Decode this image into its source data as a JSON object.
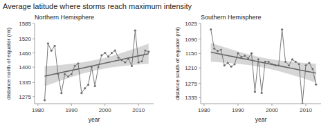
{
  "chart_data": [
    {
      "type": "line",
      "title": "Average latitude where storms reach maximum intensity",
      "subtitle": "Northern Hemisphere",
      "x_label": "year",
      "y_label": "distance north of equator (mi)",
      "x": [
        1982,
        1983,
        1984,
        1985,
        1986,
        1987,
        1988,
        1989,
        1990,
        1991,
        1992,
        1993,
        1994,
        1995,
        1996,
        1997,
        1998,
        1999,
        2000,
        2001,
        2002,
        2003,
        2004,
        2005,
        2006,
        2007,
        2008,
        2009,
        2010,
        2011,
        2012,
        2013
      ],
      "series": [
        {
          "type": "line",
          "marker": "circle",
          "line_style": "solid",
          "color": "#666666",
          "values": [
            1260,
            1500,
            1470,
            1490,
            1370,
            1290,
            1370,
            1360,
            1370,
            1405,
            1415,
            1290,
            1310,
            1325,
            1400,
            1320,
            1400,
            1450,
            1460,
            1445,
            1460,
            1470,
            1440,
            1430,
            1420,
            1435,
            1405,
            1555,
            1420,
            1425,
            1470,
            1465
          ]
        },
        {
          "type": "line",
          "line_style": "solid",
          "color": "#666666",
          "x": [
            1982,
            1985.5,
            1989.5,
            1993.5,
            1997.5,
            2001.5,
            2005.5,
            2009.5,
            2013
          ],
          "values": [
            1361.53,
            1372.3,
            1384.61,
            1396.91,
            1409.22,
            1421.52,
            1433.83,
            1446.14,
            1456.9
          ]
        },
        {
          "type": "band",
          "color": "#cccccc",
          "x": [
            1982,
            1985.5,
            1989.5,
            1993.5,
            1997.5,
            2001.5,
            2005.5,
            2009.5,
            2013
          ],
          "lower": [
            1319.09,
            1336.68,
            1355.87,
            1373.24,
            1387.5,
            1397.85,
            1405.09,
            1410.52,
            1414.46
          ],
          "upper": [
            1403.97,
            1407.92,
            1413.35,
            1420.58,
            1430.94,
            1445.19,
            1462.57,
            1481.76,
            1499.34
          ]
        }
      ],
      "xlim": [
        1979,
        2014.5
      ],
      "xticks": [
        1980,
        1990,
        2000,
        2010
      ],
      "ylim": [
        1245,
        1585
      ],
      "yticks": [
        1275,
        1335,
        1400,
        1460,
        1520,
        1585
      ],
      "grid": false
    },
    {
      "type": "line",
      "subtitle": "Southern Hemisphere",
      "x_label": "year",
      "y_label": "distance south of equator (mi)",
      "x": [
        1982,
        1983,
        1984,
        1985,
        1986,
        1987,
        1988,
        1989,
        1990,
        1991,
        1992,
        1993,
        1994,
        1995,
        1996,
        1997,
        1998,
        1999,
        2000,
        2001,
        2002,
        2003,
        2004,
        2005,
        2006,
        2007,
        2008,
        2009,
        2010,
        2011,
        2012,
        2013
      ],
      "series": [
        {
          "type": "line",
          "marker": "circle",
          "line_style": "solid",
          "color": "#666666",
          "values": [
            1050,
            1130,
            1140,
            1135,
            1200,
            1190,
            1205,
            1195,
            1150,
            1165,
            1160,
            1170,
            1150,
            1310,
            1175,
            1315,
            1185,
            1185,
            1195,
            1200,
            1200,
            1050,
            1185,
            1200,
            1175,
            1185,
            1195,
            1360,
            1200,
            1190,
            1215,
            1280
          ]
        },
        {
          "type": "line",
          "line_style": "solid",
          "color": "#666666",
          "x": [
            1982,
            1985.5,
            1989.5,
            1993.5,
            1997.5,
            2001.5,
            2005.5,
            2009.5,
            2013
          ],
          "values": [
            1145.06,
            1154.92,
            1166.2,
            1177.47,
            1188.75,
            1200.03,
            1211.3,
            1222.58,
            1232.44
          ]
        },
        {
          "type": "band",
          "color": "#cccccc",
          "x": [
            1982,
            1985.5,
            1989.5,
            1993.5,
            1997.5,
            2001.5,
            2005.5,
            2009.5,
            2013
          ],
          "lower": [
            1105.83,
            1122.0,
            1139.64,
            1155.59,
            1168.67,
            1178.15,
            1184.74,
            1189.66,
            1193.21
          ],
          "upper": [
            1184.29,
            1187.84,
            1192.76,
            1199.35,
            1208.83,
            1221.91,
            1237.86,
            1255.5,
            1271.67
          ]
        }
      ],
      "xlim": [
        1979,
        2014.5
      ],
      "xticks": [
        1980,
        1990,
        2000,
        2010
      ],
      "ylim": [
        1360,
        1025
      ],
      "yticks": [
        1025,
        1090,
        1150,
        1210,
        1275,
        1335
      ],
      "grid": false
    }
  ]
}
